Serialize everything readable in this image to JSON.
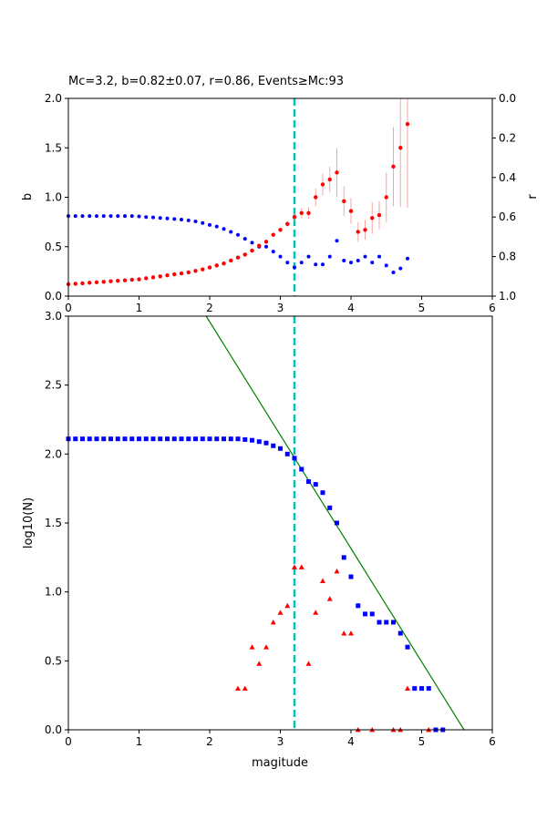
{
  "title": "Mc=3.2, b=0.82±0.07, r=0.86, Events≥Mc:93",
  "colors": {
    "b_series": "#ff0000",
    "b_errorbar": "#f4a6a6",
    "r_series": "#0000ff",
    "cumulative": "#0000ff",
    "noncumulative": "#ff0000",
    "fit_line": "#008000",
    "mc_line": "#00bfbf"
  },
  "chart_data": [
    {
      "type": "scatter",
      "panel": "top",
      "xlim": [
        0,
        6
      ],
      "ylim": [
        0,
        2.0
      ],
      "y2lim_inverted": [
        0.0,
        1.0
      ],
      "ylabel": "b",
      "y2label": "r",
      "xticks": [
        "0",
        "1",
        "2",
        "3",
        "4",
        "5",
        "6"
      ],
      "yticks": [
        "0.0",
        "0.5",
        "1.0",
        "1.5",
        "2.0"
      ],
      "y2ticks": [
        "0.0",
        "0.2",
        "0.4",
        "0.6",
        "0.8",
        "1.0"
      ],
      "mc": 3.2,
      "series": [
        {
          "axis": "left",
          "x": [
            0.0,
            0.1,
            0.2,
            0.3,
            0.4,
            0.5,
            0.6,
            0.7,
            0.8,
            0.9,
            1.0,
            1.1,
            1.2,
            1.3,
            1.4,
            1.5,
            1.6,
            1.7,
            1.8,
            1.9,
            2.0,
            2.1,
            2.2,
            2.3,
            2.4,
            2.5,
            2.6,
            2.7,
            2.8,
            2.9,
            3.0,
            3.1,
            3.2,
            3.3,
            3.4,
            3.5,
            3.6,
            3.7,
            3.8,
            3.9,
            4.0,
            4.1,
            4.2,
            4.3,
            4.4,
            4.5,
            4.6,
            4.7,
            4.8
          ],
          "values": [
            0.12,
            0.125,
            0.13,
            0.135,
            0.14,
            0.145,
            0.15,
            0.155,
            0.16,
            0.165,
            0.17,
            0.18,
            0.19,
            0.2,
            0.21,
            0.22,
            0.23,
            0.24,
            0.255,
            0.27,
            0.29,
            0.31,
            0.33,
            0.36,
            0.39,
            0.42,
            0.46,
            0.51,
            0.55,
            0.62,
            0.67,
            0.73,
            0.8,
            0.84,
            0.84,
            1.0,
            1.13,
            1.18,
            1.25,
            0.96,
            0.86,
            0.65,
            0.67,
            0.79,
            0.82,
            1.0,
            1.31,
            1.5,
            1.74
          ],
          "errors": [
            0,
            0,
            0,
            0,
            0,
            0,
            0,
            0,
            0,
            0,
            0,
            0,
            0,
            0,
            0,
            0,
            0,
            0,
            0,
            0,
            0,
            0,
            0,
            0,
            0,
            0,
            0,
            0,
            0,
            0,
            0.02,
            0.03,
            0.04,
            0.05,
            0.06,
            0.09,
            0.11,
            0.13,
            0.25,
            0.15,
            0.13,
            0.1,
            0.1,
            0.16,
            0.14,
            0.25,
            0.4,
            0.6,
            0.85
          ]
        },
        {
          "axis": "right",
          "x": [
            0.0,
            0.1,
            0.2,
            0.3,
            0.4,
            0.5,
            0.6,
            0.7,
            0.8,
            0.9,
            1.0,
            1.1,
            1.2,
            1.3,
            1.4,
            1.5,
            1.6,
            1.7,
            1.8,
            1.9,
            2.0,
            2.1,
            2.2,
            2.3,
            2.4,
            2.5,
            2.6,
            2.7,
            2.8,
            2.9,
            3.0,
            3.1,
            3.2,
            3.3,
            3.4,
            3.5,
            3.6,
            3.7,
            3.8,
            3.9,
            4.0,
            4.1,
            4.2,
            4.3,
            4.4,
            4.5,
            4.6,
            4.7,
            4.8
          ],
          "values": [
            0.595,
            0.595,
            0.595,
            0.595,
            0.595,
            0.595,
            0.595,
            0.595,
            0.595,
            0.595,
            0.597,
            0.6,
            0.602,
            0.605,
            0.607,
            0.61,
            0.613,
            0.617,
            0.622,
            0.63,
            0.64,
            0.648,
            0.66,
            0.675,
            0.69,
            0.71,
            0.73,
            0.75,
            0.75,
            0.775,
            0.8,
            0.83,
            0.855,
            0.83,
            0.8,
            0.84,
            0.84,
            0.8,
            0.72,
            0.82,
            0.83,
            0.82,
            0.8,
            0.83,
            0.8,
            0.845,
            0.88,
            0.86,
            0.81
          ]
        }
      ]
    },
    {
      "type": "scatter",
      "panel": "bottom",
      "xlim": [
        0,
        6
      ],
      "ylim": [
        0,
        3.0
      ],
      "xlabel": "magitude",
      "ylabel": "log10(N)",
      "xticks": [
        "0",
        "1",
        "2",
        "3",
        "4",
        "5",
        "6"
      ],
      "yticks": [
        "0.0",
        "0.5",
        "1.0",
        "1.5",
        "2.0",
        "2.5",
        "3.0"
      ],
      "mc": 3.2,
      "fit_line": {
        "x": [
          1.95,
          5.6
        ],
        "y": [
          3.0,
          0.0
        ]
      },
      "series": [
        {
          "marker": "square",
          "x": [
            0.0,
            0.1,
            0.2,
            0.3,
            0.4,
            0.5,
            0.6,
            0.7,
            0.8,
            0.9,
            1.0,
            1.1,
            1.2,
            1.3,
            1.4,
            1.5,
            1.6,
            1.7,
            1.8,
            1.9,
            2.0,
            2.1,
            2.2,
            2.3,
            2.4,
            2.5,
            2.6,
            2.7,
            2.8,
            2.9,
            3.0,
            3.1,
            3.2,
            3.3,
            3.4,
            3.5,
            3.6,
            3.7,
            3.8,
            3.9,
            4.0,
            4.1,
            4.2,
            4.3,
            4.4,
            4.5,
            4.6,
            4.7,
            4.8,
            4.9,
            5.0,
            5.1,
            5.2,
            5.3
          ],
          "values": [
            2.11,
            2.11,
            2.11,
            2.11,
            2.11,
            2.11,
            2.11,
            2.11,
            2.11,
            2.11,
            2.11,
            2.11,
            2.11,
            2.11,
            2.11,
            2.11,
            2.11,
            2.11,
            2.11,
            2.11,
            2.11,
            2.11,
            2.11,
            2.11,
            2.11,
            2.105,
            2.1,
            2.09,
            2.08,
            2.06,
            2.04,
            2.0,
            1.97,
            1.89,
            1.8,
            1.78,
            1.72,
            1.61,
            1.5,
            1.25,
            1.11,
            0.9,
            0.84,
            0.84,
            0.78,
            0.78,
            0.78,
            0.7,
            0.6,
            0.3,
            0.3,
            0.3,
            0.0,
            0.0
          ]
        },
        {
          "marker": "triangle",
          "x": [
            2.4,
            2.5,
            2.6,
            2.7,
            2.8,
            2.9,
            3.0,
            3.1,
            3.2,
            3.3,
            3.4,
            3.5,
            3.6,
            3.7,
            3.8,
            3.9,
            4.0,
            4.1,
            4.3,
            4.6,
            4.7,
            4.8,
            5.1
          ],
          "values": [
            0.3,
            0.3,
            0.6,
            0.48,
            0.6,
            0.78,
            0.85,
            0.9,
            1.18,
            1.18,
            0.48,
            0.85,
            1.08,
            0.95,
            1.15,
            0.7,
            0.7,
            0.0,
            0.0,
            0.0,
            0.0,
            0.3,
            0.0
          ]
        }
      ]
    }
  ]
}
